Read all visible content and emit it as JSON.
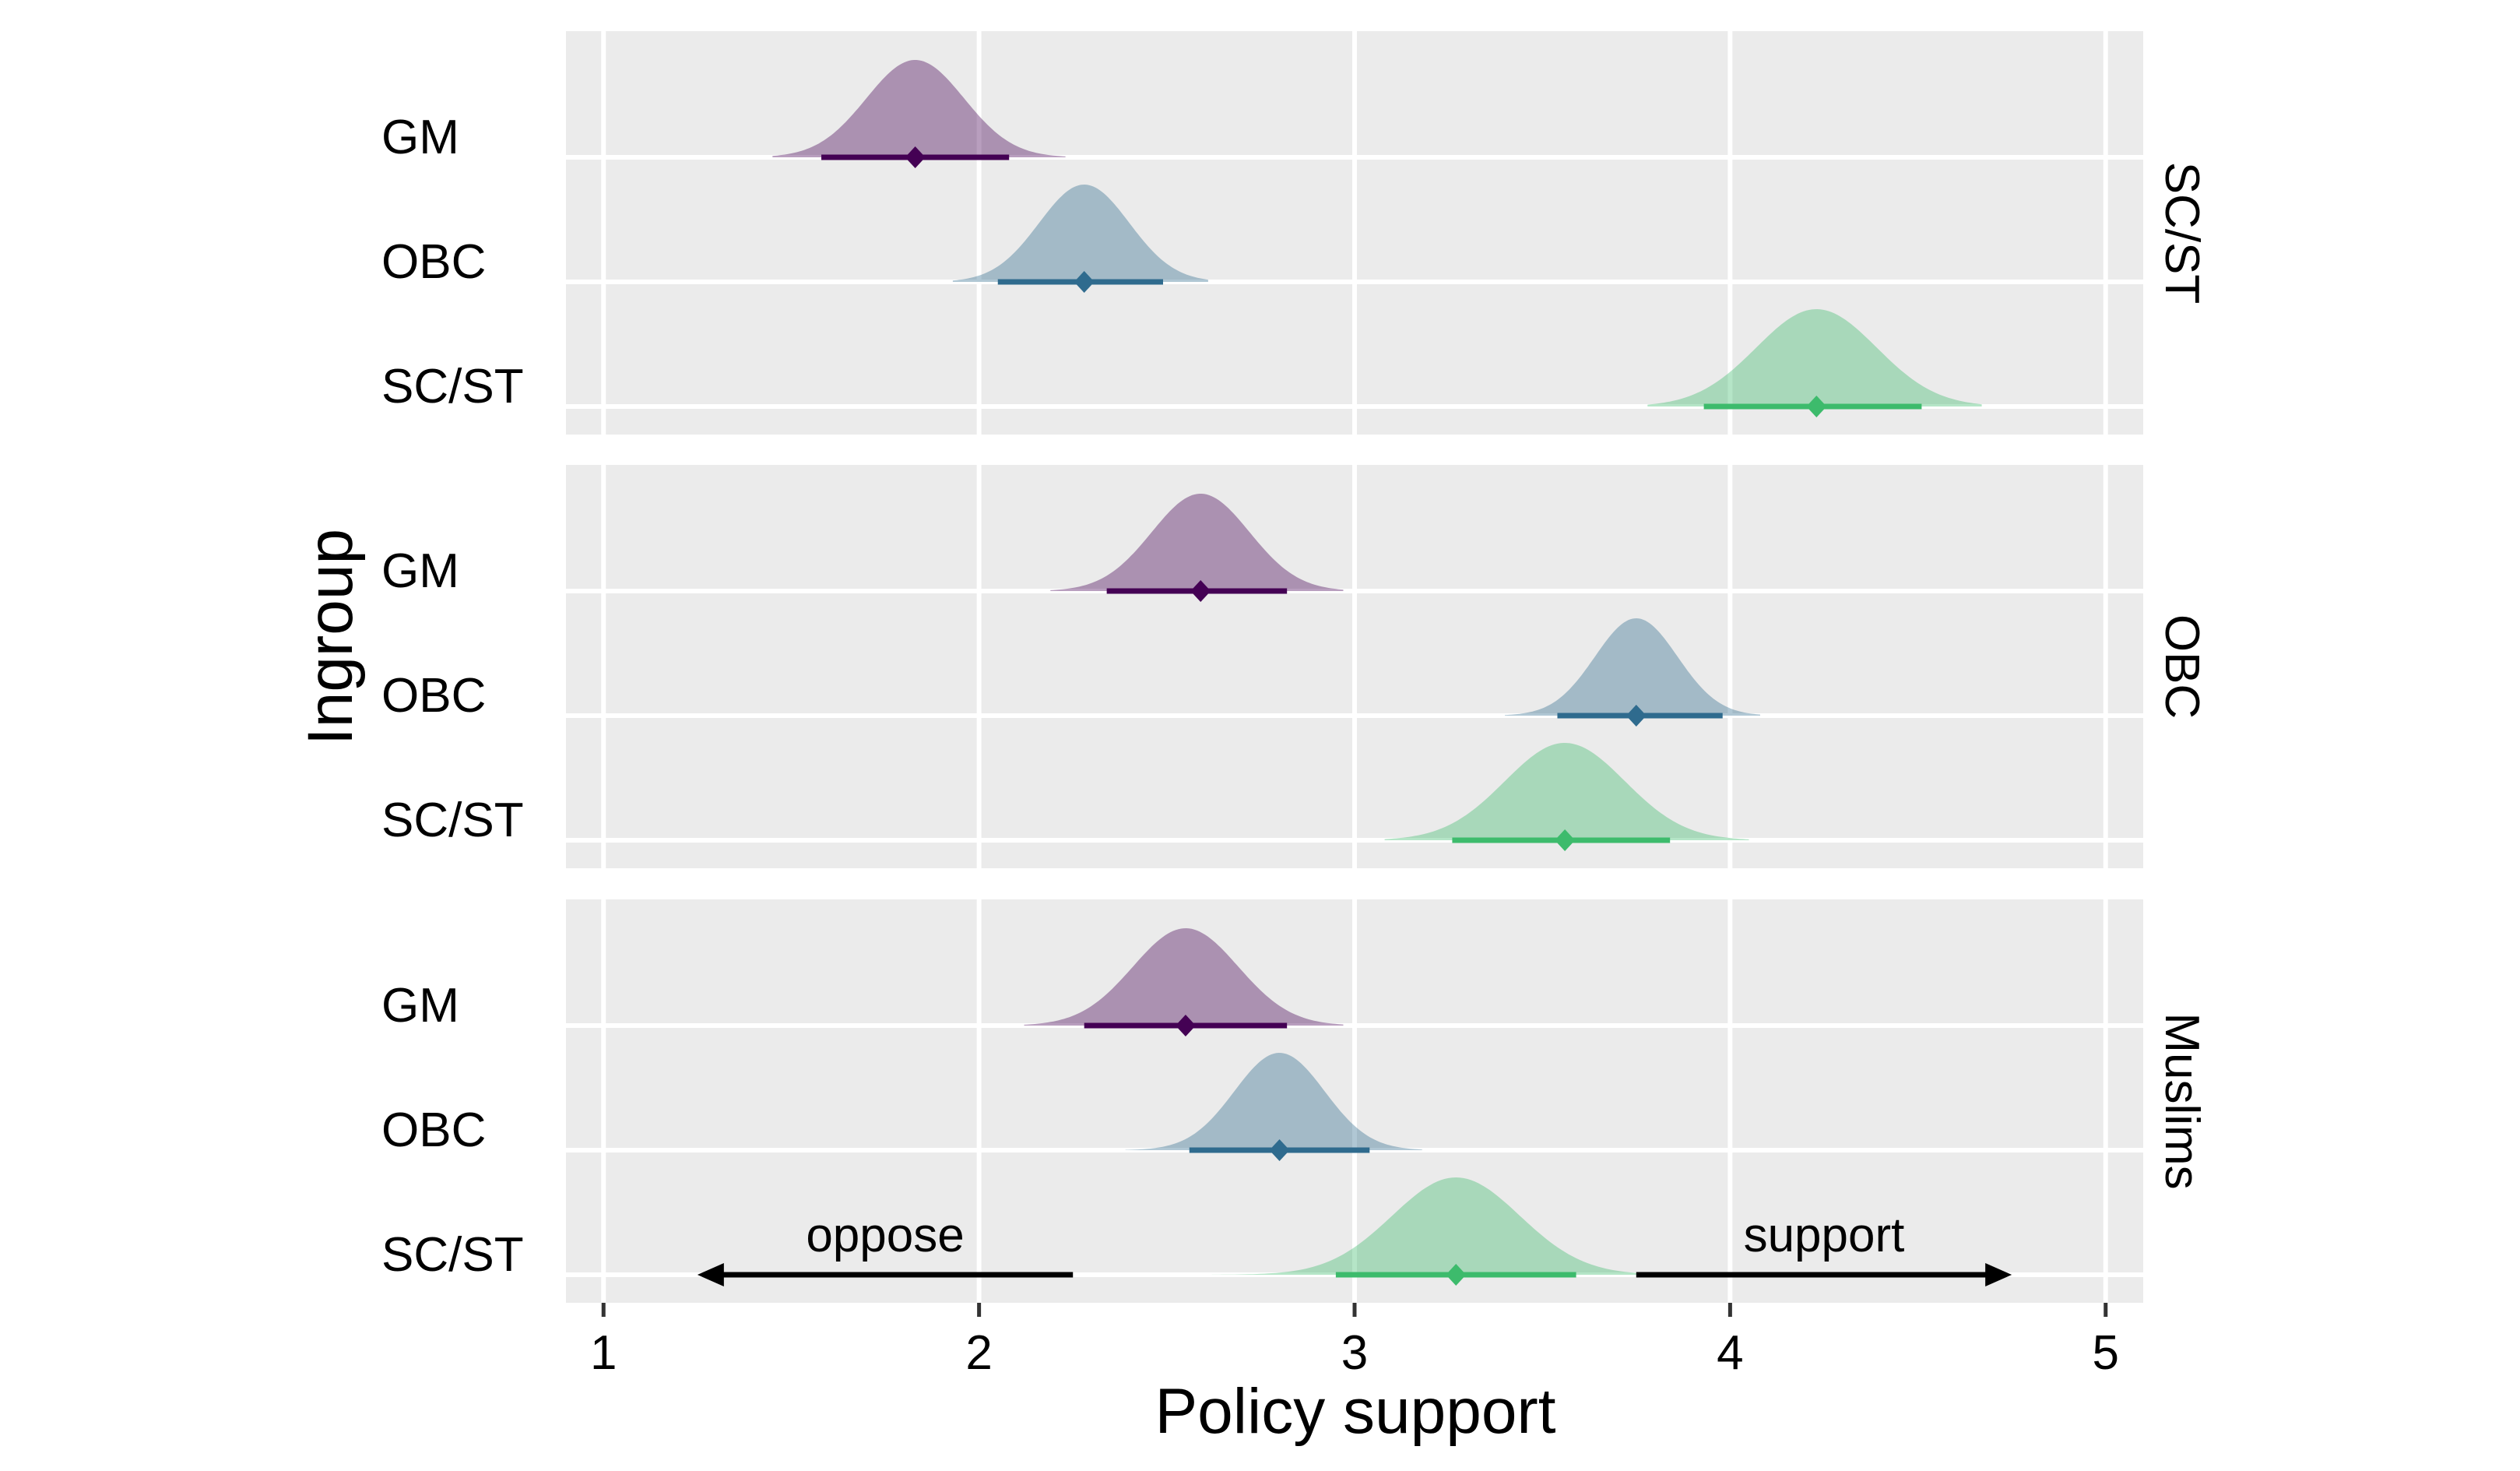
{
  "chart_data": {
    "type": "density",
    "xlabel": "Policy support",
    "ylabel": "Ingroup",
    "xlim": [
      0.9,
      5.1
    ],
    "x_ticks": [
      "1",
      "2",
      "3",
      "4",
      "5"
    ],
    "y_categories": [
      "GM",
      "OBC",
      "SC/ST"
    ],
    "grid": true,
    "facet_position": "right",
    "colors": {
      "GM": "#440154",
      "OBC": "#2f6b8e",
      "SC/ST": "#3dbb6c",
      "panel_bg": "#ebebeb",
      "grid": "#ffffff"
    },
    "annotations": {
      "oppose": {
        "label": "oppose",
        "arrow_from": 2.25,
        "arrow_to": 1.25
      },
      "support": {
        "label": "support",
        "arrow_from": 3.75,
        "arrow_to": 4.75
      }
    },
    "panels": [
      {
        "facet_label": "SC/ST",
        "series": [
          {
            "name": "GM",
            "point": 1.83,
            "interval": [
              1.58,
              2.08
            ],
            "range": [
              1.45,
              2.23
            ],
            "sd": 0.13
          },
          {
            "name": "OBC",
            "point": 2.28,
            "interval": [
              2.05,
              2.49
            ],
            "range": [
              1.93,
              2.61
            ],
            "sd": 0.12
          },
          {
            "name": "SC/ST",
            "point": 4.23,
            "interval": [
              3.93,
              4.51
            ],
            "range": [
              3.78,
              4.67
            ],
            "sd": 0.16
          }
        ]
      },
      {
        "facet_label": "OBC",
        "series": [
          {
            "name": "GM",
            "point": 2.59,
            "interval": [
              2.34,
              2.82
            ],
            "range": [
              2.19,
              2.97
            ],
            "sd": 0.13
          },
          {
            "name": "OBC",
            "point": 3.75,
            "interval": [
              3.54,
              3.98
            ],
            "range": [
              3.4,
              4.08
            ],
            "sd": 0.11
          },
          {
            "name": "SC/ST",
            "point": 3.56,
            "interval": [
              3.26,
              3.84
            ],
            "range": [
              3.08,
              4.05
            ],
            "sd": 0.16
          }
        ]
      },
      {
        "facet_label": "Muslims",
        "series": [
          {
            "name": "GM",
            "point": 2.55,
            "interval": [
              2.28,
              2.82
            ],
            "range": [
              2.12,
              2.97
            ],
            "sd": 0.14
          },
          {
            "name": "OBC",
            "point": 2.8,
            "interval": [
              2.56,
              3.04
            ],
            "range": [
              2.39,
              3.18
            ],
            "sd": 0.12
          },
          {
            "name": "SC/ST",
            "point": 3.27,
            "interval": [
              2.95,
              3.59
            ],
            "range": [
              2.62,
              3.82
            ],
            "sd": 0.17
          }
        ]
      }
    ]
  }
}
